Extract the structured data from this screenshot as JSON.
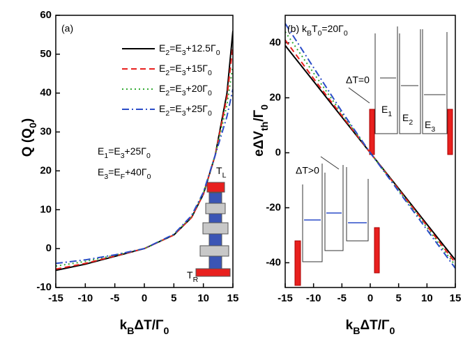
{
  "chart_data": [
    {
      "type": "line",
      "xlabel": [
        "k",
        {
          "sub": "B"
        },
        "ΔT/Γ",
        {
          "sub": "0"
        }
      ],
      "ylabel": [
        "Q (Q",
        {
          "sub": "0"
        },
        ")"
      ],
      "x": [
        -15,
        -10,
        -5,
        0,
        5,
        8,
        10,
        12,
        14,
        15
      ],
      "series": [
        {
          "name": [
            "E",
            {
              "sub": "2"
            },
            "=E",
            {
              "sub": "3"
            },
            "+12.5Γ",
            {
              "sub": "0"
            }
          ],
          "color": "#000000",
          "dash": "solid",
          "values": [
            -5.6,
            -4,
            -2,
            0,
            3.5,
            8,
            14,
            24,
            40,
            56
          ]
        },
        {
          "name": [
            "E",
            {
              "sub": "2"
            },
            "=E",
            {
              "sub": "3"
            },
            "+15Γ",
            {
              "sub": "0"
            }
          ],
          "color": "#e8201e",
          "dash": "dashed",
          "values": [
            -5.3,
            -3.8,
            -1.9,
            0,
            3.5,
            8,
            14,
            24,
            39,
            52
          ]
        },
        {
          "name": [
            "E",
            {
              "sub": "2"
            },
            "=E",
            {
              "sub": "3"
            },
            "+20Γ",
            {
              "sub": "0"
            }
          ],
          "color": "#33aa33",
          "dash": "dotted",
          "values": [
            -4.5,
            -3.3,
            -1.7,
            0,
            3.6,
            8.2,
            14.3,
            24,
            37,
            47
          ]
        },
        {
          "name": [
            "E",
            {
              "sub": "2"
            },
            "=E",
            {
              "sub": "3"
            },
            "+25Γ",
            {
              "sub": "0"
            }
          ],
          "color": "#2a4cc8",
          "dash": "dashdot",
          "values": [
            -3.8,
            -2.9,
            -1.6,
            0,
            3.7,
            8.5,
            14.5,
            24,
            34,
            41
          ]
        }
      ],
      "xlim": [
        -15,
        15
      ],
      "xticks": [
        -15,
        -10,
        -5,
        0,
        5,
        10,
        15
      ],
      "ylim": [
        -10,
        60
      ],
      "yticks": [
        -10,
        0,
        10,
        20,
        30,
        40,
        50,
        60
      ],
      "annotations": [
        "(a)",
        [
          "E",
          {
            "sub": "1"
          },
          "=E",
          {
            "sub": "3"
          },
          "+25Γ",
          {
            "sub": "0"
          }
        ],
        [
          "E",
          {
            "sub": "3"
          },
          "=E",
          {
            "sub": "F"
          },
          "+40Γ",
          {
            "sub": "0"
          }
        ],
        [
          "T",
          {
            "sub": "L"
          }
        ],
        [
          "T",
          {
            "sub": "R"
          }
        ]
      ]
    },
    {
      "type": "line",
      "xlabel": [
        "k",
        {
          "sub": "B"
        },
        "ΔT/Γ",
        {
          "sub": "0"
        }
      ],
      "ylabel": [
        "eΔV",
        {
          "sub": "th"
        },
        "/Γ",
        {
          "sub": "0"
        }
      ],
      "x": [
        -15,
        -10,
        -5,
        0,
        5,
        10,
        15
      ],
      "series": [
        {
          "color": "#000000",
          "dash": "solid",
          "values": [
            39,
            26,
            13,
            0,
            -13,
            -26,
            -39
          ]
        },
        {
          "color": "#e8201e",
          "dash": "dashed",
          "values": [
            41,
            27,
            13.5,
            0,
            -13.3,
            -26.6,
            -40
          ]
        },
        {
          "color": "#33aa33",
          "dash": "dotted",
          "values": [
            44,
            29,
            14.3,
            0,
            -13.6,
            -27.2,
            -41
          ]
        },
        {
          "color": "#2a4cc8",
          "dash": "dashdot",
          "values": [
            47,
            31,
            15,
            0,
            -14,
            -28,
            -42
          ]
        }
      ],
      "xlim": [
        -15,
        15
      ],
      "xticks": [
        -15,
        -10,
        -5,
        0,
        5,
        10,
        15
      ],
      "ylim": [
        -49,
        50
      ],
      "yticks": [
        -40,
        -20,
        0,
        20,
        40
      ],
      "annotations": [
        [
          "(b) k",
          {
            "sub": "B"
          },
          "T",
          {
            "sub": "0"
          },
          "=20Γ",
          {
            "sub": "0"
          }
        ],
        "ΔT=0",
        "ΔT>0",
        [
          "E",
          {
            "sub": "1"
          }
        ],
        [
          "E",
          {
            "sub": "2"
          }
        ],
        [
          "E",
          {
            "sub": "3"
          }
        ]
      ]
    }
  ]
}
